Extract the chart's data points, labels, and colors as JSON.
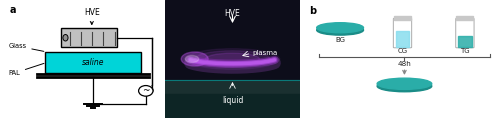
{
  "fig_width": 5.0,
  "fig_height": 1.18,
  "dpi": 100,
  "background_color": "#ffffff",
  "panel_a_label": "a",
  "panel_b_label": "b",
  "teal_color": "#2aada8",
  "saline_color": "#00d4d8",
  "hve_label": "HVE",
  "glass_label": "Glass",
  "pal_label": "PAL",
  "saline_label": "saline",
  "plasma_label": "plasma",
  "liquid_label": "liquid",
  "bg_label": "BG",
  "cg_label": "CG",
  "tg_label": "TG",
  "time_label": "48h",
  "photo_bg": "#0d0d1a",
  "plasma_glow": "#cc55ff",
  "plasma_glow2": "#aa33dd"
}
